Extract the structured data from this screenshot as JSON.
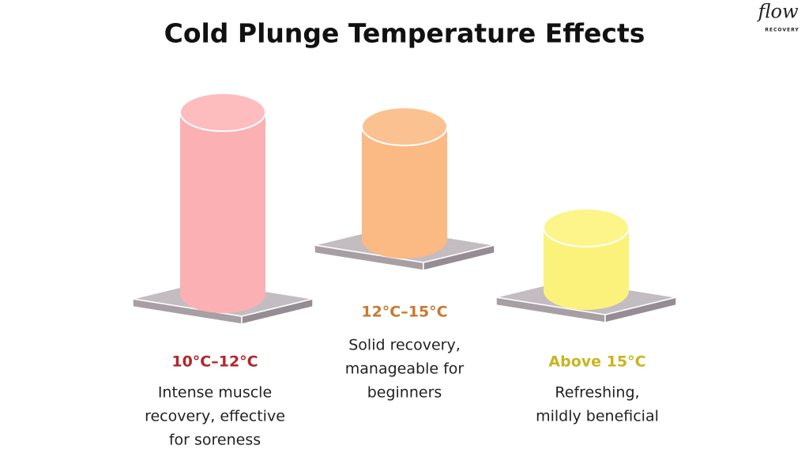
{
  "header": {
    "title": "Cold Plunge Temperature Effects",
    "logo": "flow",
    "logo_sub": "RECOVERY"
  },
  "items": [
    {
      "label": "10°C–12°C",
      "description": [
        "Intense muscle",
        "recovery, effective",
        "for soreness"
      ]
    },
    {
      "label": "12°C–15°C",
      "description": [
        "Solid recovery,",
        "manageable for",
        "beginners"
      ]
    },
    {
      "label": "Above 15°C",
      "description": [
        "Refreshing,",
        "mildly beneficial"
      ]
    }
  ]
}
